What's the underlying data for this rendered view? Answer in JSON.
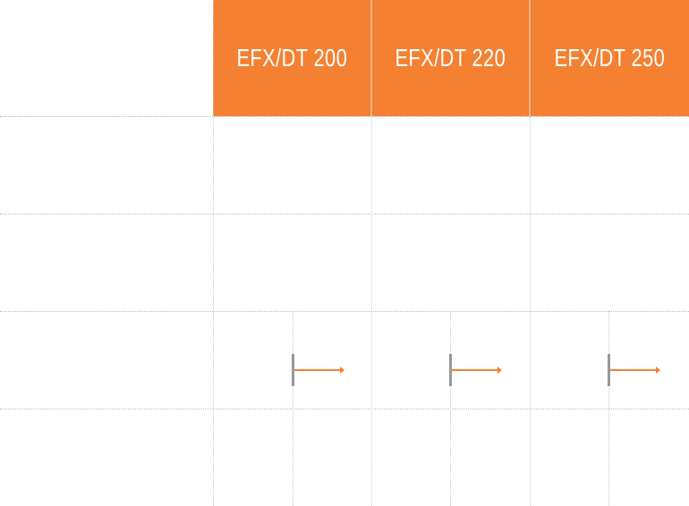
{
  "colors": {
    "accent": "#F48132",
    "marker": "#999999",
    "grid": "#BBBBBB"
  },
  "header": {
    "columns": [
      {
        "label": "EFX/DT 200"
      },
      {
        "label": "EFX/DT 220"
      },
      {
        "label": "EFX/DT 250"
      }
    ]
  }
}
